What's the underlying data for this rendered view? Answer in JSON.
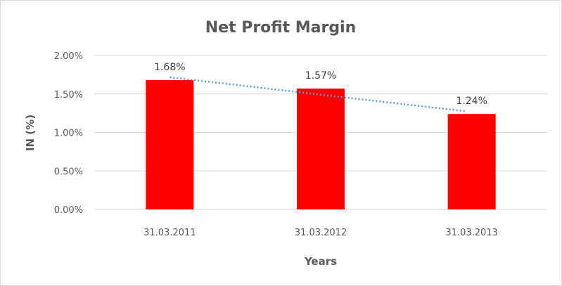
{
  "chart_data": {
    "type": "bar",
    "title": "Net Profit Margin",
    "xlabel": "Years",
    "ylabel": "IN (%)",
    "categories": [
      "31.03.2011",
      "31.03.2012",
      "31.03.2013"
    ],
    "values": [
      1.68,
      1.57,
      1.24
    ],
    "data_labels": [
      "1.68%",
      "1.57%",
      "1.24%"
    ],
    "ylim": [
      0,
      2
    ],
    "yticks": [
      0,
      0.5,
      1,
      1.5,
      2
    ],
    "ytick_labels": [
      "0.00%",
      "0.50%",
      "1.00%",
      "1.50%",
      "2.00%"
    ],
    "grid": true,
    "trendline": {
      "type": "linear",
      "style": "dotted"
    },
    "colors": {
      "bar": "#ff0000",
      "trendline": "#5b9bd5",
      "grid": "#d9d9d9",
      "text": "#595959"
    }
  }
}
